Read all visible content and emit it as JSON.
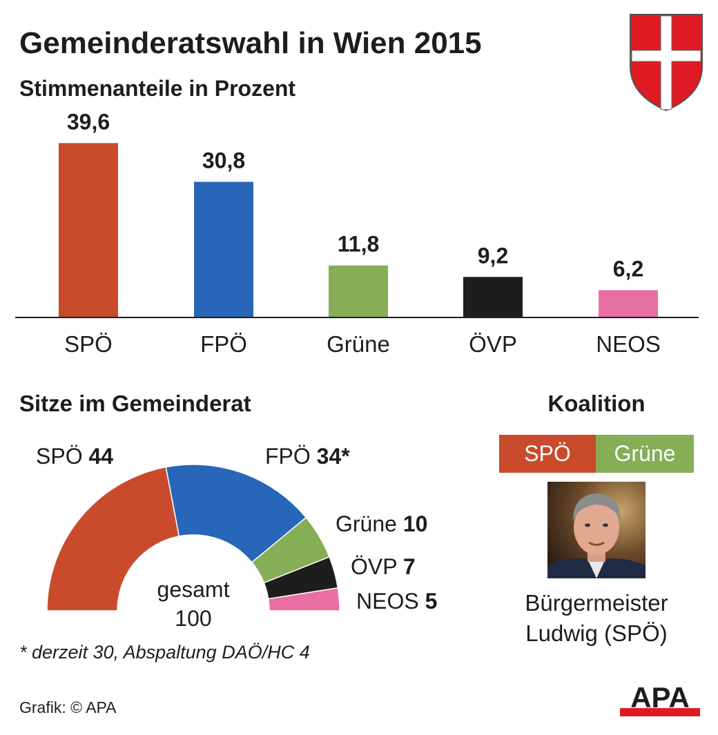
{
  "header": {
    "title": "Gemeinderatswahl in Wien 2015",
    "subtitle": "Stimmenanteile in Prozent"
  },
  "colors": {
    "SPÖ": "#c94b2c",
    "FPÖ": "#2766b8",
    "Grüne": "#85ae56",
    "ÖVP": "#1d1d1b",
    "NEOS": "#e96ea4"
  },
  "chart_data": [
    {
      "type": "bar",
      "title": "Stimmenanteile in Prozent",
      "categories": [
        "SPÖ",
        "FPÖ",
        "Grüne",
        "ÖVP",
        "NEOS"
      ],
      "values": [
        39.6,
        30.8,
        11.8,
        9.2,
        6.2
      ],
      "value_labels": [
        "39,6",
        "30,8",
        "11,8",
        "9,2",
        "6,2"
      ],
      "ylim": [
        0,
        42
      ],
      "grid": false,
      "legend": "none"
    },
    {
      "type": "pie",
      "subtype": "half-donut",
      "title": "Sitze im Gemeinderat",
      "categories": [
        "SPÖ",
        "FPÖ",
        "Grüne",
        "ÖVP",
        "NEOS"
      ],
      "values": [
        44,
        34,
        10,
        7,
        5
      ],
      "value_labels": [
        "44",
        "34*",
        "10",
        "7",
        "5"
      ],
      "center_label": [
        "gesamt",
        "100"
      ]
    }
  ],
  "seats": {
    "title": "Sitze im Gemeinderat",
    "footnote": "* derzeit 30, Abspaltung DAÖ/HC 4"
  },
  "coalition": {
    "title": "Koalition",
    "parties": [
      "SPÖ",
      "Grüne"
    ],
    "mayor_line1": "Bürgermeister",
    "mayor_line2": "Ludwig (SPÖ)"
  },
  "footer": {
    "source": "Grafik: © APA",
    "logo_text": "APA"
  },
  "icons": {
    "crest": "vienna-coat-of-arms-icon",
    "portrait": "mayor-portrait-photo",
    "logo": "apa-logo"
  }
}
